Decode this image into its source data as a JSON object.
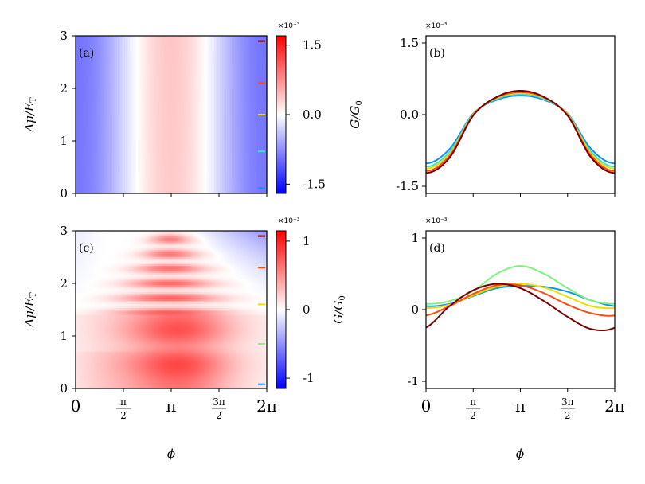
{
  "figure": {
    "xlabel": "ϕ",
    "x_tick_labels": [
      "0",
      "π/2",
      "π",
      "3π/2",
      "2π"
    ],
    "x_ticks": [
      0,
      1.5708,
      3.1416,
      4.7124,
      6.2832
    ]
  },
  "chart_data": [
    {
      "panel": "a",
      "type": "heatmap",
      "label": "(a)",
      "xlabel": "",
      "ylabel": "Δμ/E_T",
      "xlim": [
        0,
        6.2832
      ],
      "ylim": [
        0,
        3
      ],
      "y_ticks": [
        0,
        1,
        2,
        3
      ],
      "colorbar": {
        "scale_label": "×10⁻³",
        "ticks": [
          1.5,
          0.0,
          -1.5
        ],
        "tick_labels": [
          "1.5",
          "0.0",
          "-1.5"
        ],
        "range": [
          -1.7,
          1.7
        ],
        "colormap": "bwr"
      },
      "marker_colors": [
        "#7a0000",
        "#ff4a10",
        "#e8e000",
        "#40e0d0",
        "#1090f0"
      ],
      "marker_dmu": [
        2.9,
        2.1,
        1.5,
        0.8,
        0.1
      ],
      "model": "G(ϕ) ≈ 0.35 − 1.25·cos²(ϕ/2)  (×10⁻³), nearly independent of Δμ"
    },
    {
      "panel": "b",
      "type": "line",
      "label": "(b)",
      "xlabel": "",
      "ylabel": "G/G₀",
      "scale_label": "×10⁻³",
      "xlim": [
        0,
        6.2832
      ],
      "ylim": [
        -1.65,
        1.65
      ],
      "y_ticks": [
        1.5,
        0.0,
        -1.5
      ],
      "y_tick_labels": [
        "1.5",
        "0.0",
        "-1.5"
      ],
      "x": [
        0,
        0.7854,
        1.5708,
        2.3562,
        3.1416,
        3.927,
        4.7124,
        5.4978,
        6.2832
      ],
      "series": [
        {
          "color": "#7a0000",
          "values": [
            -1.22,
            -0.9,
            -0.02,
            0.37,
            0.5,
            0.37,
            -0.02,
            -0.9,
            -1.22
          ]
        },
        {
          "color": "#ff4a10",
          "values": [
            -1.18,
            -0.86,
            -0.01,
            0.36,
            0.47,
            0.36,
            -0.01,
            -0.86,
            -1.18
          ]
        },
        {
          "color": "#e8e000",
          "values": [
            -1.13,
            -0.82,
            0.0,
            0.35,
            0.45,
            0.35,
            0.0,
            -0.82,
            -1.13
          ]
        },
        {
          "color": "#40e0d0",
          "values": [
            -1.09,
            -0.78,
            0.01,
            0.33,
            0.43,
            0.33,
            0.01,
            -0.78,
            -1.09
          ]
        },
        {
          "color": "#1090f0",
          "values": [
            -1.02,
            -0.72,
            0.02,
            0.31,
            0.4,
            0.31,
            0.02,
            -0.72,
            -1.02
          ]
        }
      ]
    },
    {
      "panel": "c",
      "type": "heatmap",
      "label": "(c)",
      "xlabel": "ϕ",
      "ylabel": "Δμ/E_T",
      "xlim": [
        0,
        6.2832
      ],
      "ylim": [
        0,
        3
      ],
      "y_ticks": [
        0,
        1,
        2,
        3
      ],
      "colorbar": {
        "scale_label": "×10⁻³",
        "ticks": [
          1,
          0,
          -1
        ],
        "tick_labels": [
          "1",
          "0",
          "-1"
        ],
        "range": [
          -1.15,
          1.15
        ],
        "colormap": "bwr",
        "label": "G/G₀"
      },
      "marker_colors": [
        "#7a0000",
        "#ff4a10",
        "#e8e000",
        "#80f080",
        "#1090f0"
      ],
      "marker_dmu": [
        2.9,
        2.3,
        1.6,
        0.85,
        0.08
      ],
      "model": "Broad red lobe near ϕ≈π for Δμ<1.4 with maxima near Δμ≈0.45 and 1.1; horizontal fringes for Δμ>1.4; blue wedge at large ϕ, high Δμ"
    },
    {
      "panel": "d",
      "type": "line",
      "label": "(d)",
      "xlabel": "ϕ",
      "ylabel": "",
      "scale_label": "×10⁻³",
      "xlim": [
        0,
        6.2832
      ],
      "ylim": [
        -1.1,
        1.1
      ],
      "y_ticks": [
        1,
        0,
        -1
      ],
      "y_tick_labels": [
        "1",
        "0",
        "-1"
      ],
      "x": [
        0,
        0.7854,
        1.5708,
        2.3562,
        3.1416,
        3.927,
        4.7124,
        5.4978,
        6.2832
      ],
      "series": [
        {
          "color": "#7a0000",
          "values": [
            -0.25,
            0.05,
            0.27,
            0.36,
            0.3,
            0.12,
            -0.1,
            -0.27,
            -0.25
          ]
        },
        {
          "color": "#ff4a10",
          "values": [
            -0.08,
            0.05,
            0.22,
            0.34,
            0.34,
            0.23,
            0.07,
            -0.05,
            -0.08
          ]
        },
        {
          "color": "#e8e000",
          "values": [
            0.02,
            0.07,
            0.2,
            0.32,
            0.36,
            0.31,
            0.18,
            0.05,
            0.02
          ]
        },
        {
          "color": "#80f080",
          "values": [
            0.08,
            0.12,
            0.26,
            0.5,
            0.61,
            0.5,
            0.3,
            0.13,
            0.08
          ]
        },
        {
          "color": "#1090f0",
          "values": [
            0.05,
            0.08,
            0.19,
            0.3,
            0.33,
            0.32,
            0.25,
            0.13,
            0.05
          ]
        }
      ]
    }
  ]
}
